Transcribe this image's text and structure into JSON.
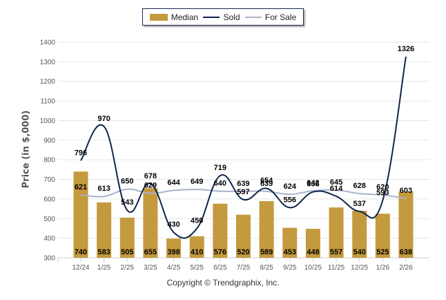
{
  "chart_data": {
    "type": "bar",
    "title": "",
    "xlabel": "",
    "ylabel": "Price (in $,000)",
    "ylim": [
      300,
      1400
    ],
    "yticks": [
      300,
      400,
      500,
      600,
      700,
      800,
      900,
      1000,
      1100,
      1200,
      1300,
      1400
    ],
    "grid": true,
    "legend_position": "top-center",
    "categories": [
      "12/24",
      "1/25",
      "2/25",
      "3/25",
      "4/25",
      "5/25",
      "6/25",
      "7/25",
      "8/25",
      "9/25",
      "10/25",
      "11/25",
      "12/25",
      "1/26",
      "2/26"
    ],
    "series": [
      {
        "name": "Median",
        "type": "bar",
        "color": "#c49a3e",
        "values": [
          740,
          583,
          505,
          655,
          398,
          410,
          576,
          520,
          589,
          453,
          448,
          557,
          540,
          525,
          638
        ]
      },
      {
        "name": "Sold",
        "type": "line",
        "color": "#0d2548",
        "values": [
          796,
          970,
          543,
          678,
          430,
          450,
          719,
          597,
          654,
          556,
          636,
          614,
          537,
          593,
          1326
        ]
      },
      {
        "name": "For Sale",
        "type": "line",
        "color": "#a9b2cc",
        "values": [
          621,
          613,
          650,
          629,
          644,
          649,
          640,
          639,
          639,
          624,
          642,
          645,
          628,
          620,
          603
        ]
      }
    ]
  },
  "legend": {
    "median": "Median",
    "sold": "Sold",
    "for_sale": "For Sale"
  },
  "footer": {
    "copyright": "Copyright © Trendgraphix, Inc."
  }
}
